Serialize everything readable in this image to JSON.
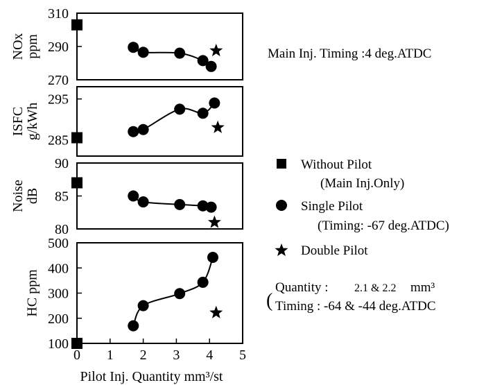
{
  "chart_data": [
    {
      "type": "scatter",
      "ylabel_lines": [
        "NOx",
        "ppm"
      ],
      "ylim": [
        270,
        310
      ],
      "yticks": [
        "270",
        "290",
        "310"
      ],
      "series": [
        {
          "name": "Without Pilot",
          "marker": "square",
          "x": [
            0
          ],
          "y": [
            303
          ]
        },
        {
          "name": "Single Pilot",
          "marker": "circle",
          "line": true,
          "x": [
            1.7,
            2.0,
            3.1,
            3.8,
            4.05
          ],
          "y": [
            289.5,
            286.5,
            286,
            281.5,
            278
          ]
        },
        {
          "name": "Double Pilot",
          "marker": "star",
          "x": [
            4.2
          ],
          "y": [
            287.5
          ]
        }
      ]
    },
    {
      "type": "scatter",
      "ylabel_lines": [
        "ISFC",
        "g/kWh"
      ],
      "ylim": [
        281,
        298
      ],
      "yticks": [
        "285",
        "295"
      ],
      "ytick_values": [
        285,
        295
      ],
      "series": [
        {
          "name": "Without Pilot",
          "marker": "square",
          "x": [
            0
          ],
          "y": [
            285.5
          ]
        },
        {
          "name": "Single Pilot",
          "marker": "circle",
          "line": true,
          "x": [
            1.7,
            2.0,
            3.1,
            3.8,
            4.15
          ],
          "y": [
            287,
            287.5,
            292.5,
            291.5,
            294
          ]
        },
        {
          "name": "Double Pilot",
          "marker": "star",
          "x": [
            4.25
          ],
          "y": [
            288
          ]
        }
      ]
    },
    {
      "type": "scatter",
      "ylabel_lines": [
        "Noise",
        "dB"
      ],
      "ylim": [
        80,
        90
      ],
      "yticks": [
        "80",
        "85",
        "90"
      ],
      "series": [
        {
          "name": "Without Pilot",
          "marker": "square",
          "x": [
            0
          ],
          "y": [
            87
          ]
        },
        {
          "name": "Single Pilot",
          "marker": "circle",
          "line": true,
          "x": [
            1.7,
            2.0,
            3.1,
            3.8,
            4.05
          ],
          "y": [
            85,
            84.1,
            83.7,
            83.5,
            83.3
          ]
        },
        {
          "name": "Double Pilot",
          "marker": "star",
          "x": [
            4.15
          ],
          "y": [
            81
          ]
        }
      ]
    },
    {
      "type": "scatter",
      "ylabel_lines": [
        "HC ppm"
      ],
      "ylim": [
        100,
        500
      ],
      "yticks": [
        "100",
        "200",
        "300",
        "400",
        "500"
      ],
      "xlim": [
        0,
        5
      ],
      "xticks": [
        "0",
        "1",
        "2",
        "3",
        "4",
        "5"
      ],
      "xlabel": "Pilot Inj. Quantity mm³/st",
      "series": [
        {
          "name": "Without Pilot",
          "marker": "square",
          "x": [
            0
          ],
          "y": [
            100
          ]
        },
        {
          "name": "Single Pilot",
          "marker": "circle",
          "line": true,
          "x": [
            1.7,
            2.0,
            3.1,
            3.8,
            4.1
          ],
          "y": [
            170,
            250,
            298,
            343,
            442
          ]
        },
        {
          "name": "Double Pilot",
          "marker": "star",
          "x": [
            4.2
          ],
          "y": [
            222
          ]
        }
      ]
    }
  ],
  "annotation": "Main Inj. Timing :4 deg.ATDC",
  "legend": {
    "without_pilot": "Without Pilot",
    "without_pilot_note": "(Main Inj.Only)",
    "single_pilot": "Single Pilot",
    "single_pilot_note": "(Timing: -67 deg.ATDC)",
    "double_pilot": "Double Pilot",
    "double_quantity_prefix": "Quantity :",
    "double_quantity_values": "2.1 & 2.2",
    "double_quantity_unit": "mm³",
    "double_timing": "Timing : -64 & -44 deg.ATDC"
  }
}
